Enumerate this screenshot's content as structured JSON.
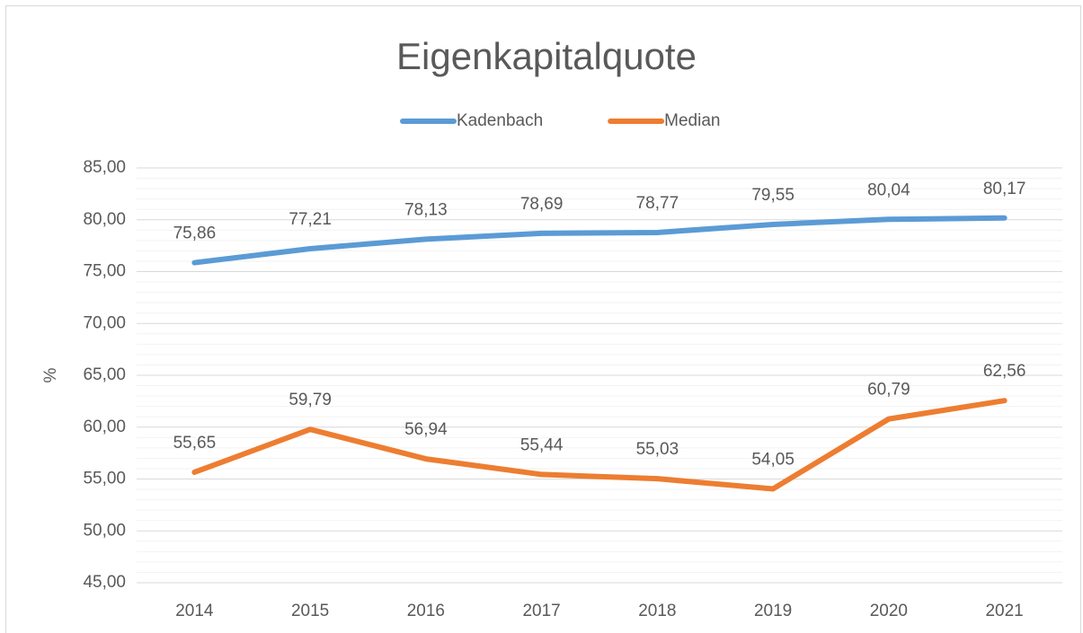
{
  "chart_data": {
    "type": "line",
    "title": "Eigenkapitalquote",
    "y_label": "%",
    "categories": [
      "2014",
      "2015",
      "2016",
      "2017",
      "2018",
      "2019",
      "2020",
      "2021"
    ],
    "series": [
      {
        "name": "Kadenbach",
        "color": "#5b9bd5",
        "values": [
          75.86,
          77.21,
          78.13,
          78.69,
          78.77,
          79.55,
          80.04,
          80.17
        ],
        "value_labels": [
          "75,86",
          "77,21",
          "78,13",
          "78,69",
          "78,77",
          "79,55",
          "80,04",
          "80,17"
        ]
      },
      {
        "name": "Median",
        "color": "#ed7d31",
        "values": [
          55.65,
          59.79,
          56.94,
          55.44,
          55.03,
          54.05,
          60.79,
          62.56
        ],
        "value_labels": [
          "55,65",
          "59,79",
          "56,94",
          "55,44",
          "55,03",
          "54,05",
          "60,79",
          "62,56"
        ]
      }
    ],
    "ylim": [
      45,
      85
    ],
    "yticks": [
      {
        "value": 45,
        "label": "45,00"
      },
      {
        "value": 50,
        "label": "50,00"
      },
      {
        "value": 55,
        "label": "55,00"
      },
      {
        "value": 60,
        "label": "60,00"
      },
      {
        "value": 65,
        "label": "65,00"
      },
      {
        "value": 70,
        "label": "70,00"
      },
      {
        "value": 75,
        "label": "75,00"
      },
      {
        "value": 80,
        "label": "80,00"
      },
      {
        "value": 85,
        "label": "85,00"
      }
    ],
    "grid": true,
    "minor_grid": true,
    "legend": "top"
  }
}
